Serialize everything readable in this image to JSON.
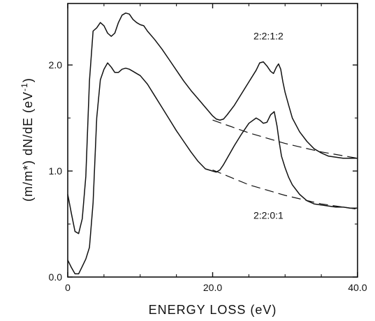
{
  "chart_data": {
    "type": "line",
    "xlabel": "ENERGY LOSS (eV)",
    "ylabel_main": "(m/m*) dN/dE (eV",
    "ylabel_sup": "-1",
    "ylabel_close": ")",
    "xlim": [
      0,
      40
    ],
    "ylim": [
      0,
      2.58
    ],
    "x_ticks": [
      0,
      20,
      40
    ],
    "x_tick_labels": [
      "0",
      "20.0",
      "40.0"
    ],
    "y_ticks": [
      0,
      1,
      2
    ],
    "y_tick_labels": [
      "0.0",
      "1.0",
      "2.0"
    ],
    "grid": false,
    "series": [
      {
        "name": "2:2:1:2",
        "style": "solid",
        "x": [
          0,
          0.5,
          1,
          1.5,
          2,
          2.5,
          3,
          3.5,
          4,
          4.5,
          5,
          5.5,
          6,
          6.5,
          7,
          7.5,
          8,
          8.5,
          9,
          9.5,
          10,
          10.5,
          11,
          12,
          13,
          14,
          15,
          16,
          17,
          18,
          19,
          20,
          20.5,
          21,
          21.5,
          22,
          23,
          24,
          25,
          26,
          26.5,
          27,
          27.5,
          28,
          28.4,
          28.8,
          29.1,
          29.4,
          29.7,
          30,
          30.5,
          31,
          32,
          33,
          34,
          35,
          36,
          37,
          38,
          39,
          40
        ],
        "y": [
          0.78,
          0.6,
          0.43,
          0.41,
          0.55,
          0.95,
          1.85,
          2.32,
          2.35,
          2.4,
          2.37,
          2.3,
          2.27,
          2.3,
          2.4,
          2.47,
          2.49,
          2.48,
          2.43,
          2.4,
          2.38,
          2.37,
          2.32,
          2.24,
          2.15,
          2.05,
          1.95,
          1.85,
          1.76,
          1.68,
          1.6,
          1.52,
          1.49,
          1.48,
          1.49,
          1.53,
          1.62,
          1.73,
          1.84,
          1.95,
          2.02,
          2.03,
          1.99,
          1.94,
          1.92,
          1.98,
          2.01,
          1.96,
          1.84,
          1.74,
          1.62,
          1.5,
          1.37,
          1.28,
          1.21,
          1.17,
          1.14,
          1.13,
          1.12,
          1.12,
          1.12
        ]
      },
      {
        "name": "2:2:0:1",
        "style": "solid",
        "x": [
          0,
          0.5,
          1,
          1.5,
          2,
          2.5,
          3,
          3.5,
          4,
          4.5,
          5,
          5.5,
          6,
          6.5,
          7,
          7.5,
          8,
          8.5,
          9,
          9.5,
          10,
          11,
          12,
          13,
          14,
          15,
          16,
          17,
          18,
          19,
          20,
          20.5,
          21,
          21.5,
          22,
          23,
          24,
          25,
          26,
          26.5,
          27,
          27.5,
          28,
          28.5,
          28.9,
          29.2,
          29.5,
          30,
          30.5,
          31,
          32,
          33,
          34,
          35,
          36,
          37,
          38,
          39,
          40
        ],
        "y": [
          0.16,
          0.09,
          0.03,
          0.03,
          0.1,
          0.17,
          0.28,
          0.7,
          1.5,
          1.86,
          1.96,
          2.02,
          1.98,
          1.93,
          1.93,
          1.96,
          1.97,
          1.96,
          1.94,
          1.92,
          1.9,
          1.82,
          1.71,
          1.6,
          1.49,
          1.38,
          1.28,
          1.18,
          1.09,
          1.02,
          1.0,
          0.99,
          1.01,
          1.06,
          1.12,
          1.24,
          1.35,
          1.45,
          1.5,
          1.48,
          1.45,
          1.46,
          1.53,
          1.56,
          1.42,
          1.27,
          1.14,
          1.03,
          0.94,
          0.87,
          0.78,
          0.72,
          0.69,
          0.68,
          0.67,
          0.66,
          0.66,
          0.65,
          0.65
        ]
      },
      {
        "name": "",
        "style": "dashed",
        "x": [
          20,
          25,
          30,
          35,
          40
        ],
        "y": [
          1.48,
          1.36,
          1.26,
          1.18,
          1.12
        ]
      },
      {
        "name": "",
        "style": "dashed",
        "x": [
          20,
          25,
          30,
          35,
          40
        ],
        "y": [
          1.01,
          0.87,
          0.77,
          0.69,
          0.64
        ]
      }
    ],
    "annotations": [
      {
        "text": "2:2:1:2",
        "x": 27.7,
        "y": 2.24
      },
      {
        "text": "2:2:0:1",
        "x": 27.7,
        "y": 0.55
      }
    ]
  }
}
